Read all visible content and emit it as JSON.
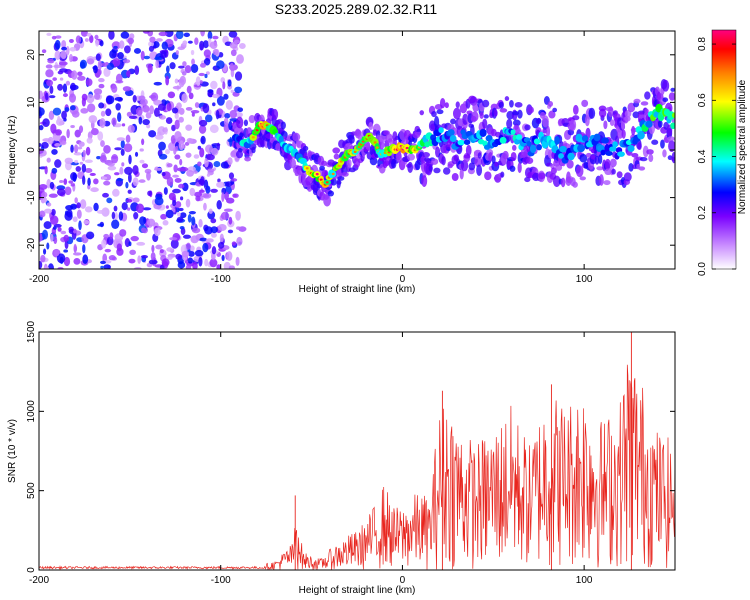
{
  "figure": {
    "title": "S233.2025.289.02.32.R11"
  },
  "chart_data": [
    {
      "type": "heatmap",
      "name": "spectrogram",
      "xlabel": "Height of straight line (km)",
      "ylabel": "Frequency (Hz)",
      "xlim": [
        -200,
        150
      ],
      "ylim": [
        -25,
        25
      ],
      "xticks": [
        -200,
        -100,
        0,
        100
      ],
      "yticks": [
        -20,
        -10,
        0,
        10,
        20
      ],
      "colorbar": {
        "label": "Normalized spectral amplitude",
        "range": [
          0.0,
          0.85
        ],
        "ticks": [
          0.0,
          0.2,
          0.4,
          0.6,
          0.8
        ],
        "colors": [
          "#ffffff",
          "#8a00ff",
          "#0000ff",
          "#00ffff",
          "#00ff00",
          "#ffff00",
          "#ff8000",
          "#ff0000",
          "#ff0080"
        ]
      },
      "noise_region": {
        "x_range": [
          -200,
          -88
        ],
        "y_range": [
          -25,
          25
        ],
        "level": 0.2
      },
      "ridge": [
        {
          "x": -92,
          "f": 2.5,
          "a": 0.3
        },
        {
          "x": -85,
          "f": 1.5,
          "a": 0.4
        },
        {
          "x": -78,
          "f": 5.5,
          "a": 0.7
        },
        {
          "x": -72,
          "f": 4.5,
          "a": 0.5
        },
        {
          "x": -65,
          "f": 1.0,
          "a": 0.35
        },
        {
          "x": -58,
          "f": -1.0,
          "a": 0.4
        },
        {
          "x": -52,
          "f": -4.0,
          "a": 0.55
        },
        {
          "x": -47,
          "f": -5.5,
          "a": 0.7
        },
        {
          "x": -42,
          "f": -7.0,
          "a": 0.6
        },
        {
          "x": -36,
          "f": -3.5,
          "a": 0.5
        },
        {
          "x": -30,
          "f": -1.0,
          "a": 0.6
        },
        {
          "x": -25,
          "f": 0.0,
          "a": 0.55
        },
        {
          "x": -18,
          "f": 3.0,
          "a": 0.6
        },
        {
          "x": -12,
          "f": -0.5,
          "a": 0.5
        },
        {
          "x": -6,
          "f": 0.0,
          "a": 0.6
        },
        {
          "x": 0,
          "f": 0.5,
          "a": 0.75
        },
        {
          "x": 6,
          "f": 0.0,
          "a": 0.6
        },
        {
          "x": 14,
          "f": 1.5,
          "a": 0.4
        },
        {
          "x": 20,
          "f": 3.0,
          "a": 0.35
        },
        {
          "x": 30,
          "f": 2.0,
          "a": 0.35
        },
        {
          "x": 40,
          "f": 3.0,
          "a": 0.4
        },
        {
          "x": 50,
          "f": 1.0,
          "a": 0.35
        },
        {
          "x": 60,
          "f": 3.5,
          "a": 0.4
        },
        {
          "x": 70,
          "f": 0.5,
          "a": 0.35
        },
        {
          "x": 80,
          "f": 3.0,
          "a": 0.4
        },
        {
          "x": 90,
          "f": -1.0,
          "a": 0.35
        },
        {
          "x": 100,
          "f": 2.0,
          "a": 0.4
        },
        {
          "x": 110,
          "f": 1.0,
          "a": 0.35
        },
        {
          "x": 120,
          "f": 0.0,
          "a": 0.35
        },
        {
          "x": 130,
          "f": 3.0,
          "a": 0.4
        },
        {
          "x": 140,
          "f": 8.0,
          "a": 0.5
        },
        {
          "x": 148,
          "f": 6.0,
          "a": 0.5
        }
      ]
    },
    {
      "type": "line",
      "name": "snr",
      "xlabel": "Height of straight line (km)",
      "ylabel": "SNR (10 * v/v)",
      "xlim": [
        -200,
        150
      ],
      "ylim": [
        0,
        1500
      ],
      "xticks": [
        -200,
        -100,
        0,
        100
      ],
      "yticks": [
        0,
        500,
        1000,
        1500
      ],
      "color": "#e8261f",
      "series": [
        {
          "name": "SNR",
          "x": [
            -200,
            -150,
            -100,
            -90,
            -80,
            -70,
            -60,
            -58,
            -55,
            -50,
            -45,
            -40,
            -35,
            -30,
            -25,
            -20,
            -15,
            -10,
            -5,
            0,
            5,
            10,
            15,
            20,
            25,
            30,
            40,
            50,
            60,
            70,
            80,
            90,
            100,
            110,
            120,
            125,
            130,
            140,
            150
          ],
          "values": [
            15,
            15,
            15,
            15,
            20,
            60,
            180,
            470,
            120,
            90,
            70,
            130,
            180,
            220,
            250,
            320,
            420,
            560,
            400,
            400,
            470,
            500,
            450,
            1000,
            1130,
            950,
            800,
            900,
            1050,
            800,
            1170,
            1060,
            1200,
            950,
            1100,
            1500,
            1270,
            900,
            800
          ]
        }
      ],
      "peaks": [
        {
          "x": -59,
          "y": 470
        },
        {
          "x": 22,
          "y": 1130
        },
        {
          "x": 82,
          "y": 1170
        },
        {
          "x": 126,
          "y": 1500
        }
      ]
    }
  ]
}
